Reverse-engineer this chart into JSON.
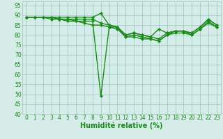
{
  "x": [
    0,
    1,
    2,
    3,
    4,
    5,
    6,
    7,
    8,
    9,
    10,
    11,
    12,
    13,
    14,
    15,
    16,
    17,
    18,
    19,
    20,
    21,
    22,
    23
  ],
  "line1": [
    89,
    89,
    89,
    89,
    89,
    89,
    89,
    89,
    89,
    91,
    85,
    84,
    80,
    81,
    80,
    79,
    83,
    81,
    82,
    82,
    81,
    84,
    88,
    85
  ],
  "line2": [
    89,
    89,
    89,
    89,
    88,
    88,
    88,
    88,
    88,
    86,
    85,
    84,
    80,
    81,
    80,
    79,
    78,
    81,
    82,
    82,
    81,
    84,
    88,
    85
  ],
  "line3": [
    89,
    89,
    89,
    89,
    88,
    88,
    87,
    87,
    87,
    49,
    84,
    84,
    79,
    80,
    79,
    78,
    77,
    80,
    82,
    82,
    80,
    83,
    87,
    84
  ],
  "line4": [
    89,
    89,
    89,
    88,
    88,
    87,
    87,
    86,
    85,
    85,
    84,
    83,
    79,
    79,
    78,
    78,
    77,
    80,
    81,
    81,
    80,
    83,
    86,
    84
  ],
  "xlabel": "Humidité relative (%)",
  "ylim": [
    40,
    97
  ],
  "yticks": [
    40,
    45,
    50,
    55,
    60,
    65,
    70,
    75,
    80,
    85,
    90,
    95
  ],
  "xticks": [
    0,
    1,
    2,
    3,
    4,
    5,
    6,
    7,
    8,
    9,
    10,
    11,
    12,
    13,
    14,
    15,
    16,
    17,
    18,
    19,
    20,
    21,
    22,
    23
  ],
  "line_color": "#1a8c1a",
  "bg_color": "#d4ede8",
  "grid_color": "#a0c4bc",
  "marker": "D",
  "marker_size": 2.2,
  "line_width": 1.0,
  "xlabel_fontsize": 7,
  "tick_fontsize": 5.5
}
